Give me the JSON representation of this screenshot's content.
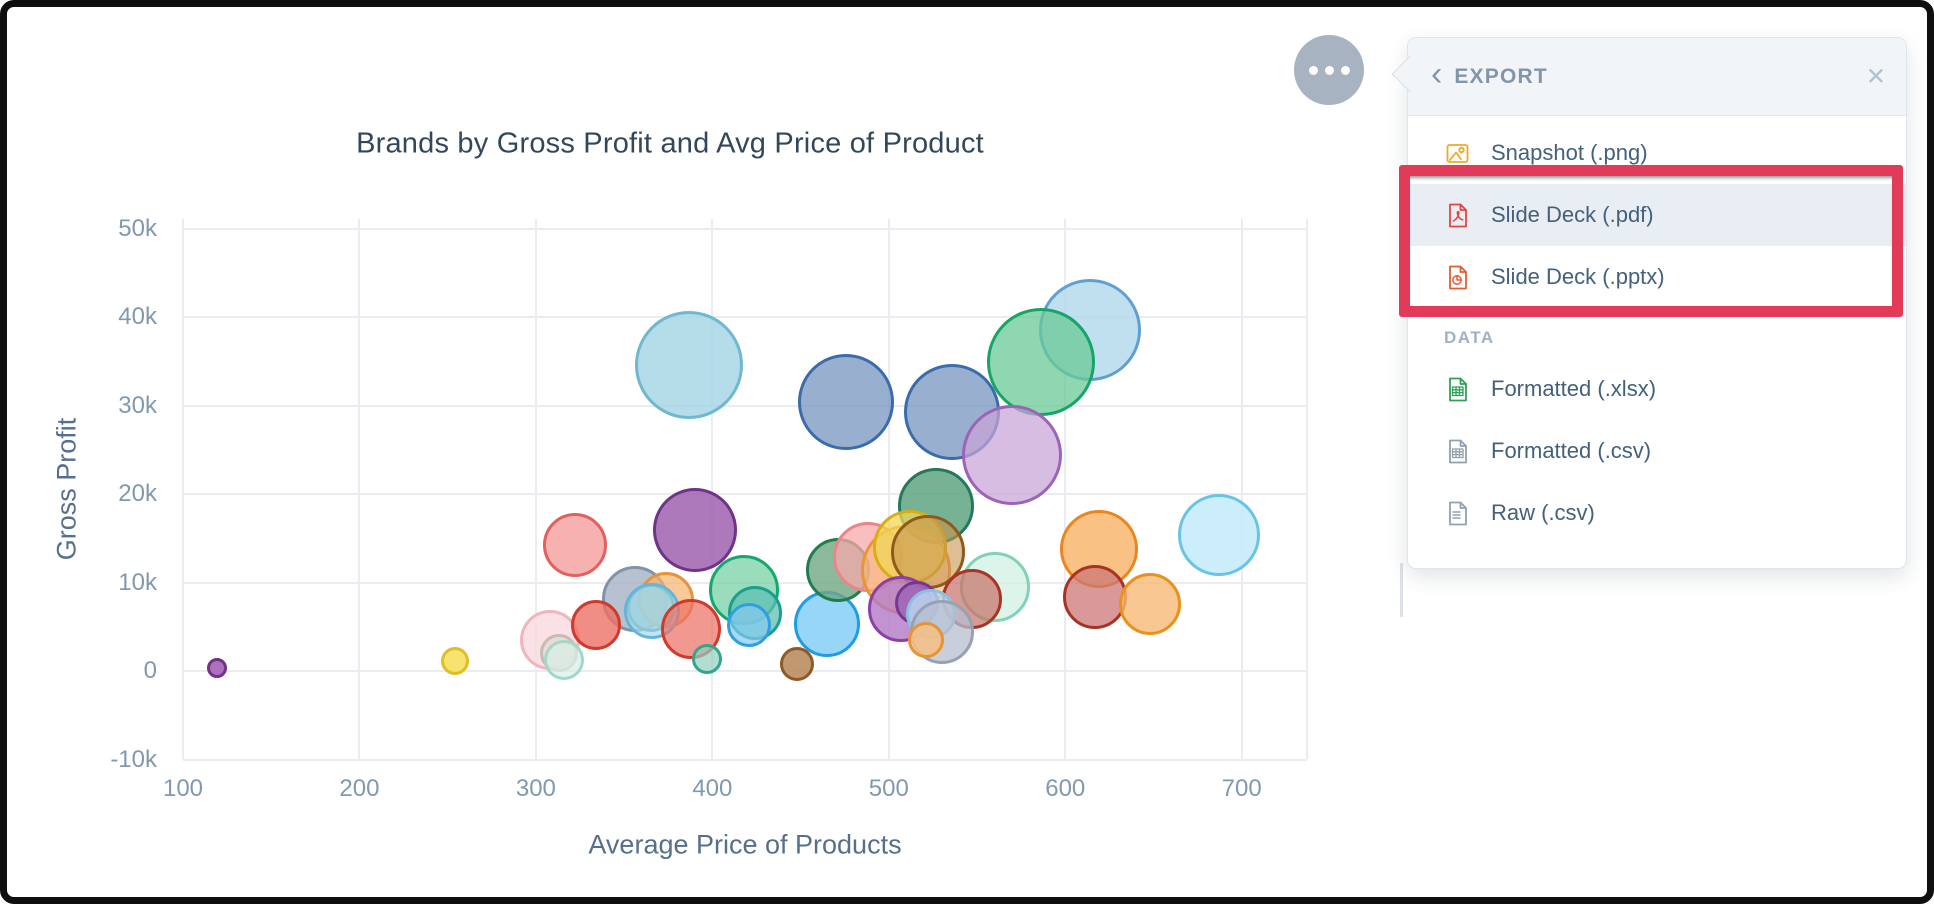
{
  "page": {
    "frame_color": "#0f0f0f",
    "background": "#ffffff"
  },
  "chart_data": {
    "type": "scatter",
    "title": "Brands by Gross Profit and Avg Price of Product",
    "xlabel": "Average Price of Products",
    "ylabel": "Gross Profit",
    "x_ticks": [
      100,
      200,
      300,
      400,
      500,
      600,
      700
    ],
    "y_ticks": [
      {
        "value": 50,
        "label": "50k"
      },
      {
        "value": 40,
        "label": "40k"
      },
      {
        "value": 30,
        "label": "30k"
      },
      {
        "value": 20,
        "label": "20k"
      },
      {
        "value": 10,
        "label": "10k"
      },
      {
        "value": 0,
        "label": "0"
      },
      {
        "value": -10,
        "label": "-10k"
      }
    ],
    "x_range": [
      100,
      737
    ],
    "y_range_k": [
      -10,
      50
    ],
    "grid": true,
    "legend": false,
    "units": "gross_profit values are in thousands (k); r is bubble radius in px",
    "bubbles": [
      {
        "price": 387,
        "profit_k": 34.6,
        "r": 54,
        "fill": "rgba(167,214,229,0.85)",
        "stroke": "#6fb8cf"
      },
      {
        "price": 476,
        "profit_k": 30.4,
        "r": 48,
        "fill": "rgba(112,144,188,0.72)",
        "stroke": "#3a6cab"
      },
      {
        "price": 536,
        "profit_k": 29.3,
        "r": 48,
        "fill": "rgba(112,144,188,0.72)",
        "stroke": "#3a6cab"
      },
      {
        "price": 614,
        "profit_k": 38.5,
        "r": 51,
        "fill": "rgba(172,213,234,0.75)",
        "stroke": "#5f9fd4"
      },
      {
        "price": 586,
        "profit_k": 34.9,
        "r": 54,
        "fill": "rgba(105,201,150,0.75)",
        "stroke": "#16a567"
      },
      {
        "price": 570,
        "profit_k": 24.4,
        "r": 50,
        "fill": "rgba(200,163,214,0.72)",
        "stroke": "#9c64b8"
      },
      {
        "price": 527,
        "profit_k": 18.6,
        "r": 38,
        "fill": "rgba(96,164,130,0.85)",
        "stroke": "#24795a"
      },
      {
        "price": 390,
        "profit_k": 15.9,
        "r": 42,
        "fill": "rgba(160,97,175,0.85)",
        "stroke": "#6f3388"
      },
      {
        "price": 322,
        "profit_k": 14.2,
        "r": 32,
        "fill": "rgba(245,158,158,0.8)",
        "stroke": "#e2615e"
      },
      {
        "price": 308,
        "profit_k": 3.5,
        "r": 30,
        "fill": "rgba(249,218,223,0.8)",
        "stroke": "#eeb7be"
      },
      {
        "price": 313,
        "profit_k": 2.0,
        "r": 19,
        "fill": "rgba(227,218,212,0.85)",
        "stroke": "#c7bcb4"
      },
      {
        "price": 316,
        "profit_k": 1.2,
        "r": 20,
        "fill": "rgba(215,240,231,0.7)",
        "stroke": "#a2d8c4"
      },
      {
        "price": 254,
        "profit_k": 1.1,
        "r": 14,
        "fill": "rgba(245,224,97,0.9)",
        "stroke": "#e0be26"
      },
      {
        "price": 119,
        "profit_k": 0.3,
        "r": 10,
        "fill": "rgba(165,98,177,0.9)",
        "stroke": "#6f3388"
      },
      {
        "price": 356,
        "profit_k": 8.1,
        "r": 33,
        "fill": "rgba(165,178,196,0.8)",
        "stroke": "#7e93ac"
      },
      {
        "price": 374,
        "profit_k": 8.0,
        "r": 28,
        "fill": "rgba(246,179,108,0.7)",
        "stroke": "#e8923a"
      },
      {
        "price": 365,
        "profit_k": 7.1,
        "r": 24,
        "fill": "rgba(123,194,177,0.6)",
        "stroke": "#3d9f8c"
      },
      {
        "price": 366,
        "profit_k": 6.8,
        "r": 28,
        "fill": "rgba(169,216,240,0.7)",
        "stroke": "#64b4dc"
      },
      {
        "price": 334,
        "profit_k": 5.2,
        "r": 25,
        "fill": "rgba(236,113,101,0.8)",
        "stroke": "#cf3a2c"
      },
      {
        "price": 388,
        "profit_k": 4.7,
        "r": 30,
        "fill": "rgba(236,113,101,0.72)",
        "stroke": "#cf3a2c"
      },
      {
        "price": 397,
        "profit_k": 1.4,
        "r": 15,
        "fill": "rgba(143,208,192,0.7)",
        "stroke": "#35a48c"
      },
      {
        "price": 418,
        "profit_k": 9.2,
        "r": 35,
        "fill": "rgba(111,206,161,0.7)",
        "stroke": "#13a86f"
      },
      {
        "price": 424,
        "profit_k": 6.6,
        "r": 27,
        "fill": "rgba(95,191,179,0.75)",
        "stroke": "#1a9e90"
      },
      {
        "price": 421,
        "profit_k": 5.2,
        "r": 22,
        "fill": "rgba(131,201,241,0.7)",
        "stroke": "#2e9fe0"
      },
      {
        "price": 465,
        "profit_k": 5.3,
        "r": 33,
        "fill": "rgba(133,207,245,0.85)",
        "stroke": "#1e9de6"
      },
      {
        "price": 448,
        "profit_k": 0.8,
        "r": 17,
        "fill": "rgba(187,141,96,0.9)",
        "stroke": "#8f5a28"
      },
      {
        "price": 471,
        "profit_k": 11.4,
        "r": 32,
        "fill": "rgba(111,166,131,0.8)",
        "stroke": "#1f7e4e"
      },
      {
        "price": 488,
        "profit_k": 12.9,
        "r": 35,
        "fill": "rgba(247,169,169,0.75)",
        "stroke": "#ec8585"
      },
      {
        "price": 510,
        "profit_k": 11.4,
        "r": 45,
        "fill": "rgba(247,185,119,0.6)",
        "stroke": "#eb9432"
      },
      {
        "price": 512,
        "profit_k": 14.0,
        "r": 37,
        "fill": "rgba(241,215,85,0.75)",
        "stroke": "#d9ae14"
      },
      {
        "price": 522,
        "profit_k": 13.4,
        "r": 37,
        "fill": "rgba(199,147,79,0.6)",
        "stroke": "#8e5a1e"
      },
      {
        "price": 560,
        "profit_k": 9.5,
        "r": 35,
        "fill": "rgba(206,240,227,0.7)",
        "stroke": "#82d2b4"
      },
      {
        "price": 547,
        "profit_k": 8.1,
        "r": 30,
        "fill": "rgba(199,111,103,0.7)",
        "stroke": "#a63527"
      },
      {
        "price": 507,
        "profit_k": 7.0,
        "r": 33,
        "fill": "rgba(177,121,197,0.8)",
        "stroke": "#8b3fa8"
      },
      {
        "price": 516,
        "profit_k": 7.7,
        "r": 22,
        "fill": "rgba(157,101,181,0.85)",
        "stroke": "#763694"
      },
      {
        "price": 524,
        "profit_k": 6.4,
        "r": 25,
        "fill": "rgba(187,221,243,0.8)",
        "stroke": "#8cc0e2"
      },
      {
        "price": 530,
        "profit_k": 4.4,
        "r": 32,
        "fill": "rgba(183,189,207,0.75)",
        "stroke": "#97a1b4"
      },
      {
        "price": 521,
        "profit_k": 3.5,
        "r": 18,
        "fill": "rgba(247,191,131,0.85)",
        "stroke": "#e89434"
      },
      {
        "price": 619,
        "profit_k": 13.8,
        "r": 39,
        "fill": "rgba(248,178,101,0.8)",
        "stroke": "#e8871e"
      },
      {
        "price": 687,
        "profit_k": 15.4,
        "r": 41,
        "fill": "rgba(199,235,249,0.9)",
        "stroke": "#66c4e8"
      },
      {
        "price": 617,
        "profit_k": 8.4,
        "r": 32,
        "fill": "rgba(203,119,117,0.75)",
        "stroke": "#a93226"
      },
      {
        "price": 648,
        "profit_k": 7.6,
        "r": 31,
        "fill": "rgba(248,185,117,0.8)",
        "stroke": "#e8921c"
      }
    ]
  },
  "more_button": {
    "icon": "ellipsis",
    "dot_count": 3,
    "color": "#a7b3c0"
  },
  "export_menu": {
    "back_chevron": "‹",
    "title": "EXPORT",
    "close": "✕",
    "slides_items": [
      {
        "label": "Snapshot (.png)",
        "icon": "image-icon",
        "color": "#f5a623",
        "highlighted": false
      },
      {
        "label": "Slide Deck (.pdf)",
        "icon": "pdf-file-icon",
        "color": "#e8433e",
        "highlighted": true
      },
      {
        "label": "Slide Deck (.pptx)",
        "icon": "pptx-file-icon",
        "color": "#e65b35",
        "highlighted": false
      }
    ],
    "section_label": "DATA",
    "data_items": [
      {
        "label": "Formatted (.xlsx)",
        "icon": "xlsx-file-icon",
        "color": "#2fa156"
      },
      {
        "label": "Formatted (.csv)",
        "icon": "csv-file-icon",
        "color": "#91a1b0"
      },
      {
        "label": "Raw (.csv)",
        "icon": "raw-file-icon",
        "color": "#91a1b0"
      }
    ]
  },
  "annotation": {
    "color": "#e23a59",
    "purpose": "highlights Slide Deck (.pdf) and Slide Deck (.pptx) export options"
  }
}
